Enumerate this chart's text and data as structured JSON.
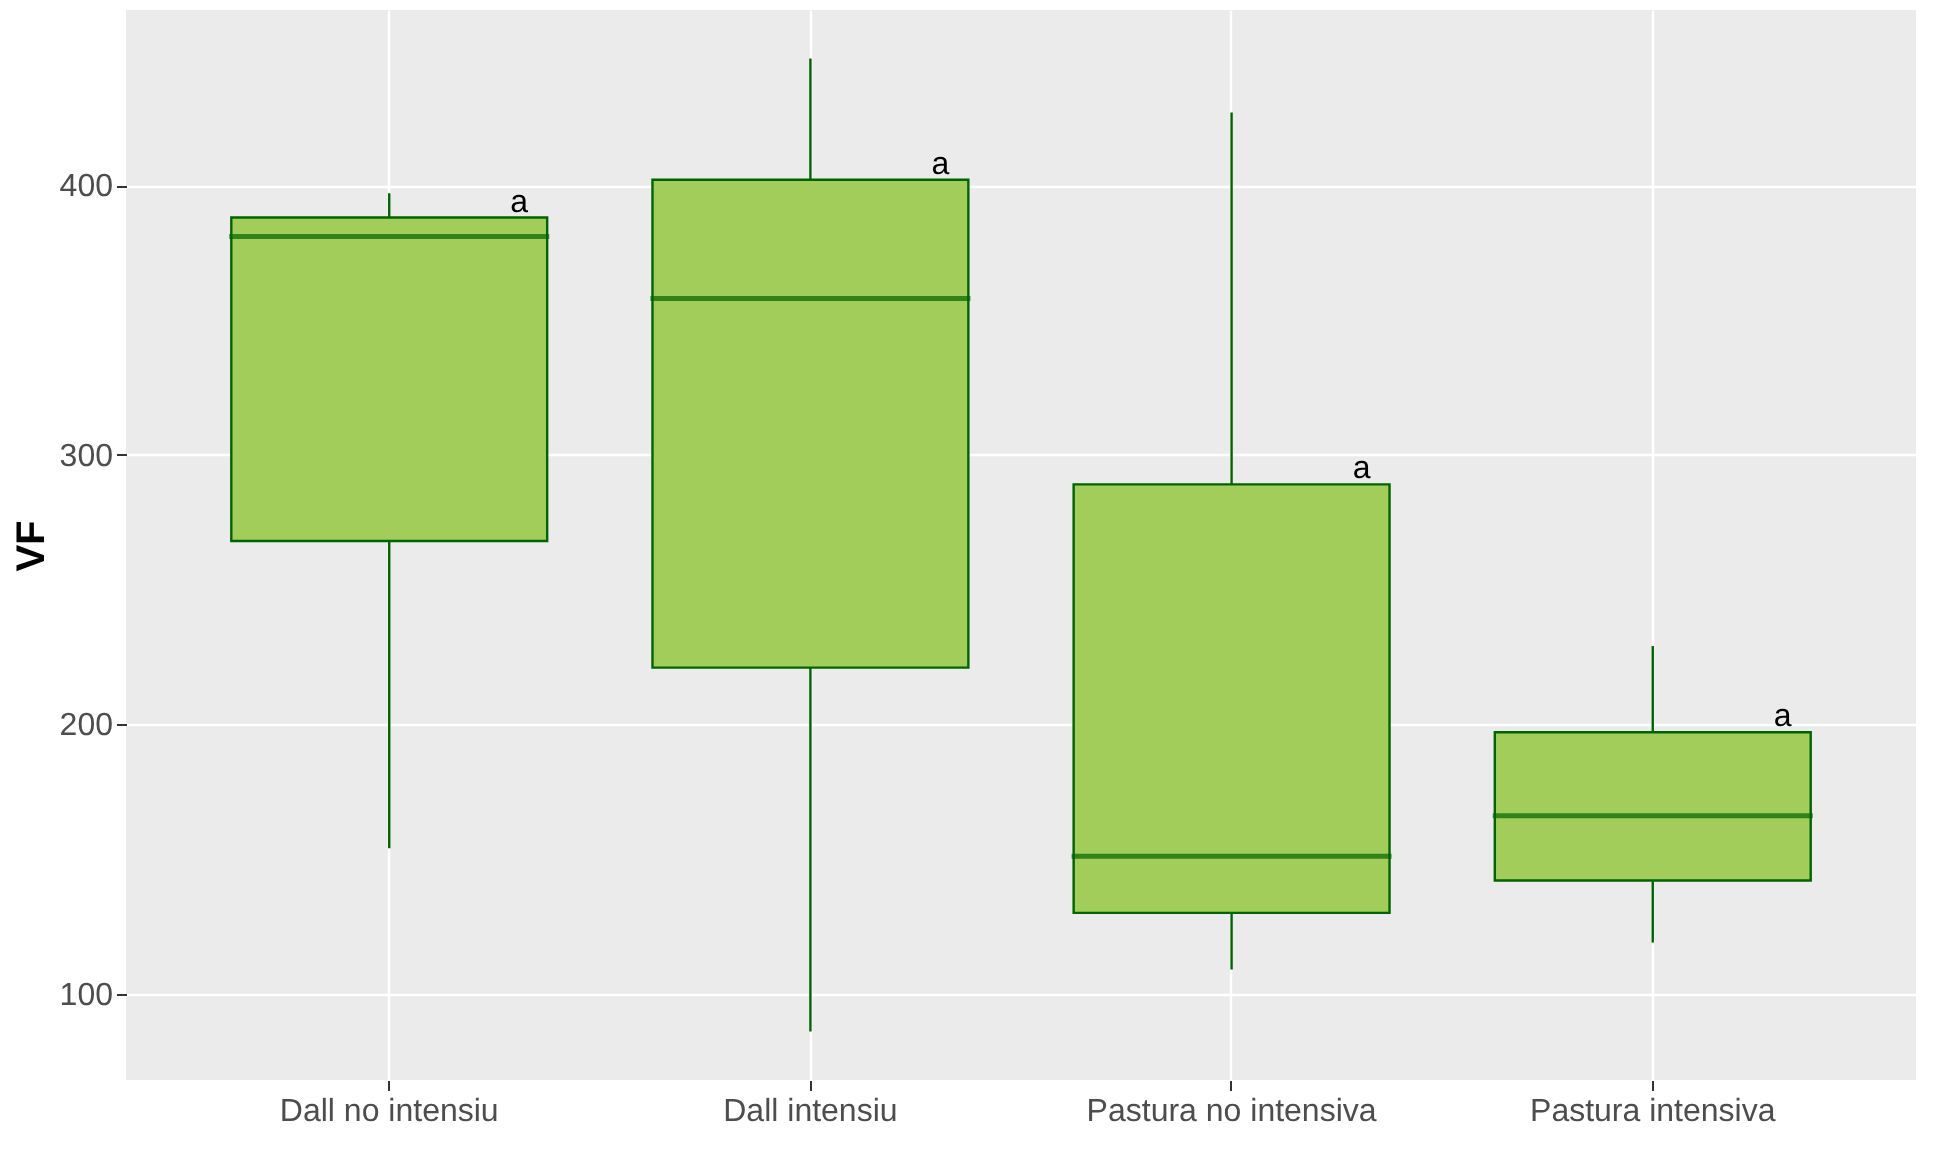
{
  "chart_data": {
    "type": "box",
    "ylabel": "VF",
    "categories": [
      "Dall no intensiu",
      "Dall intensiu",
      "Pastura no intensiva",
      "Pastura intensiva"
    ],
    "series": [
      {
        "color": "#a2cd5a",
        "boxes": [
          {
            "low": 154,
            "q1": 268,
            "median": 381,
            "q3": 388,
            "high": 397
          },
          {
            "low": 86,
            "q1": 221,
            "median": 358,
            "q3": 402,
            "high": 447
          },
          {
            "low": 109,
            "q1": 130,
            "median": 151,
            "q3": 289,
            "high": 427
          },
          {
            "low": 119,
            "q1": 142,
            "median": 166,
            "q3": 197,
            "high": 229
          }
        ]
      }
    ],
    "ylim": [
      68,
      465
    ],
    "yticks": [
      100,
      200,
      300,
      400
    ],
    "grid": true,
    "annotations": [
      "a",
      "a",
      "a",
      "a"
    ]
  }
}
